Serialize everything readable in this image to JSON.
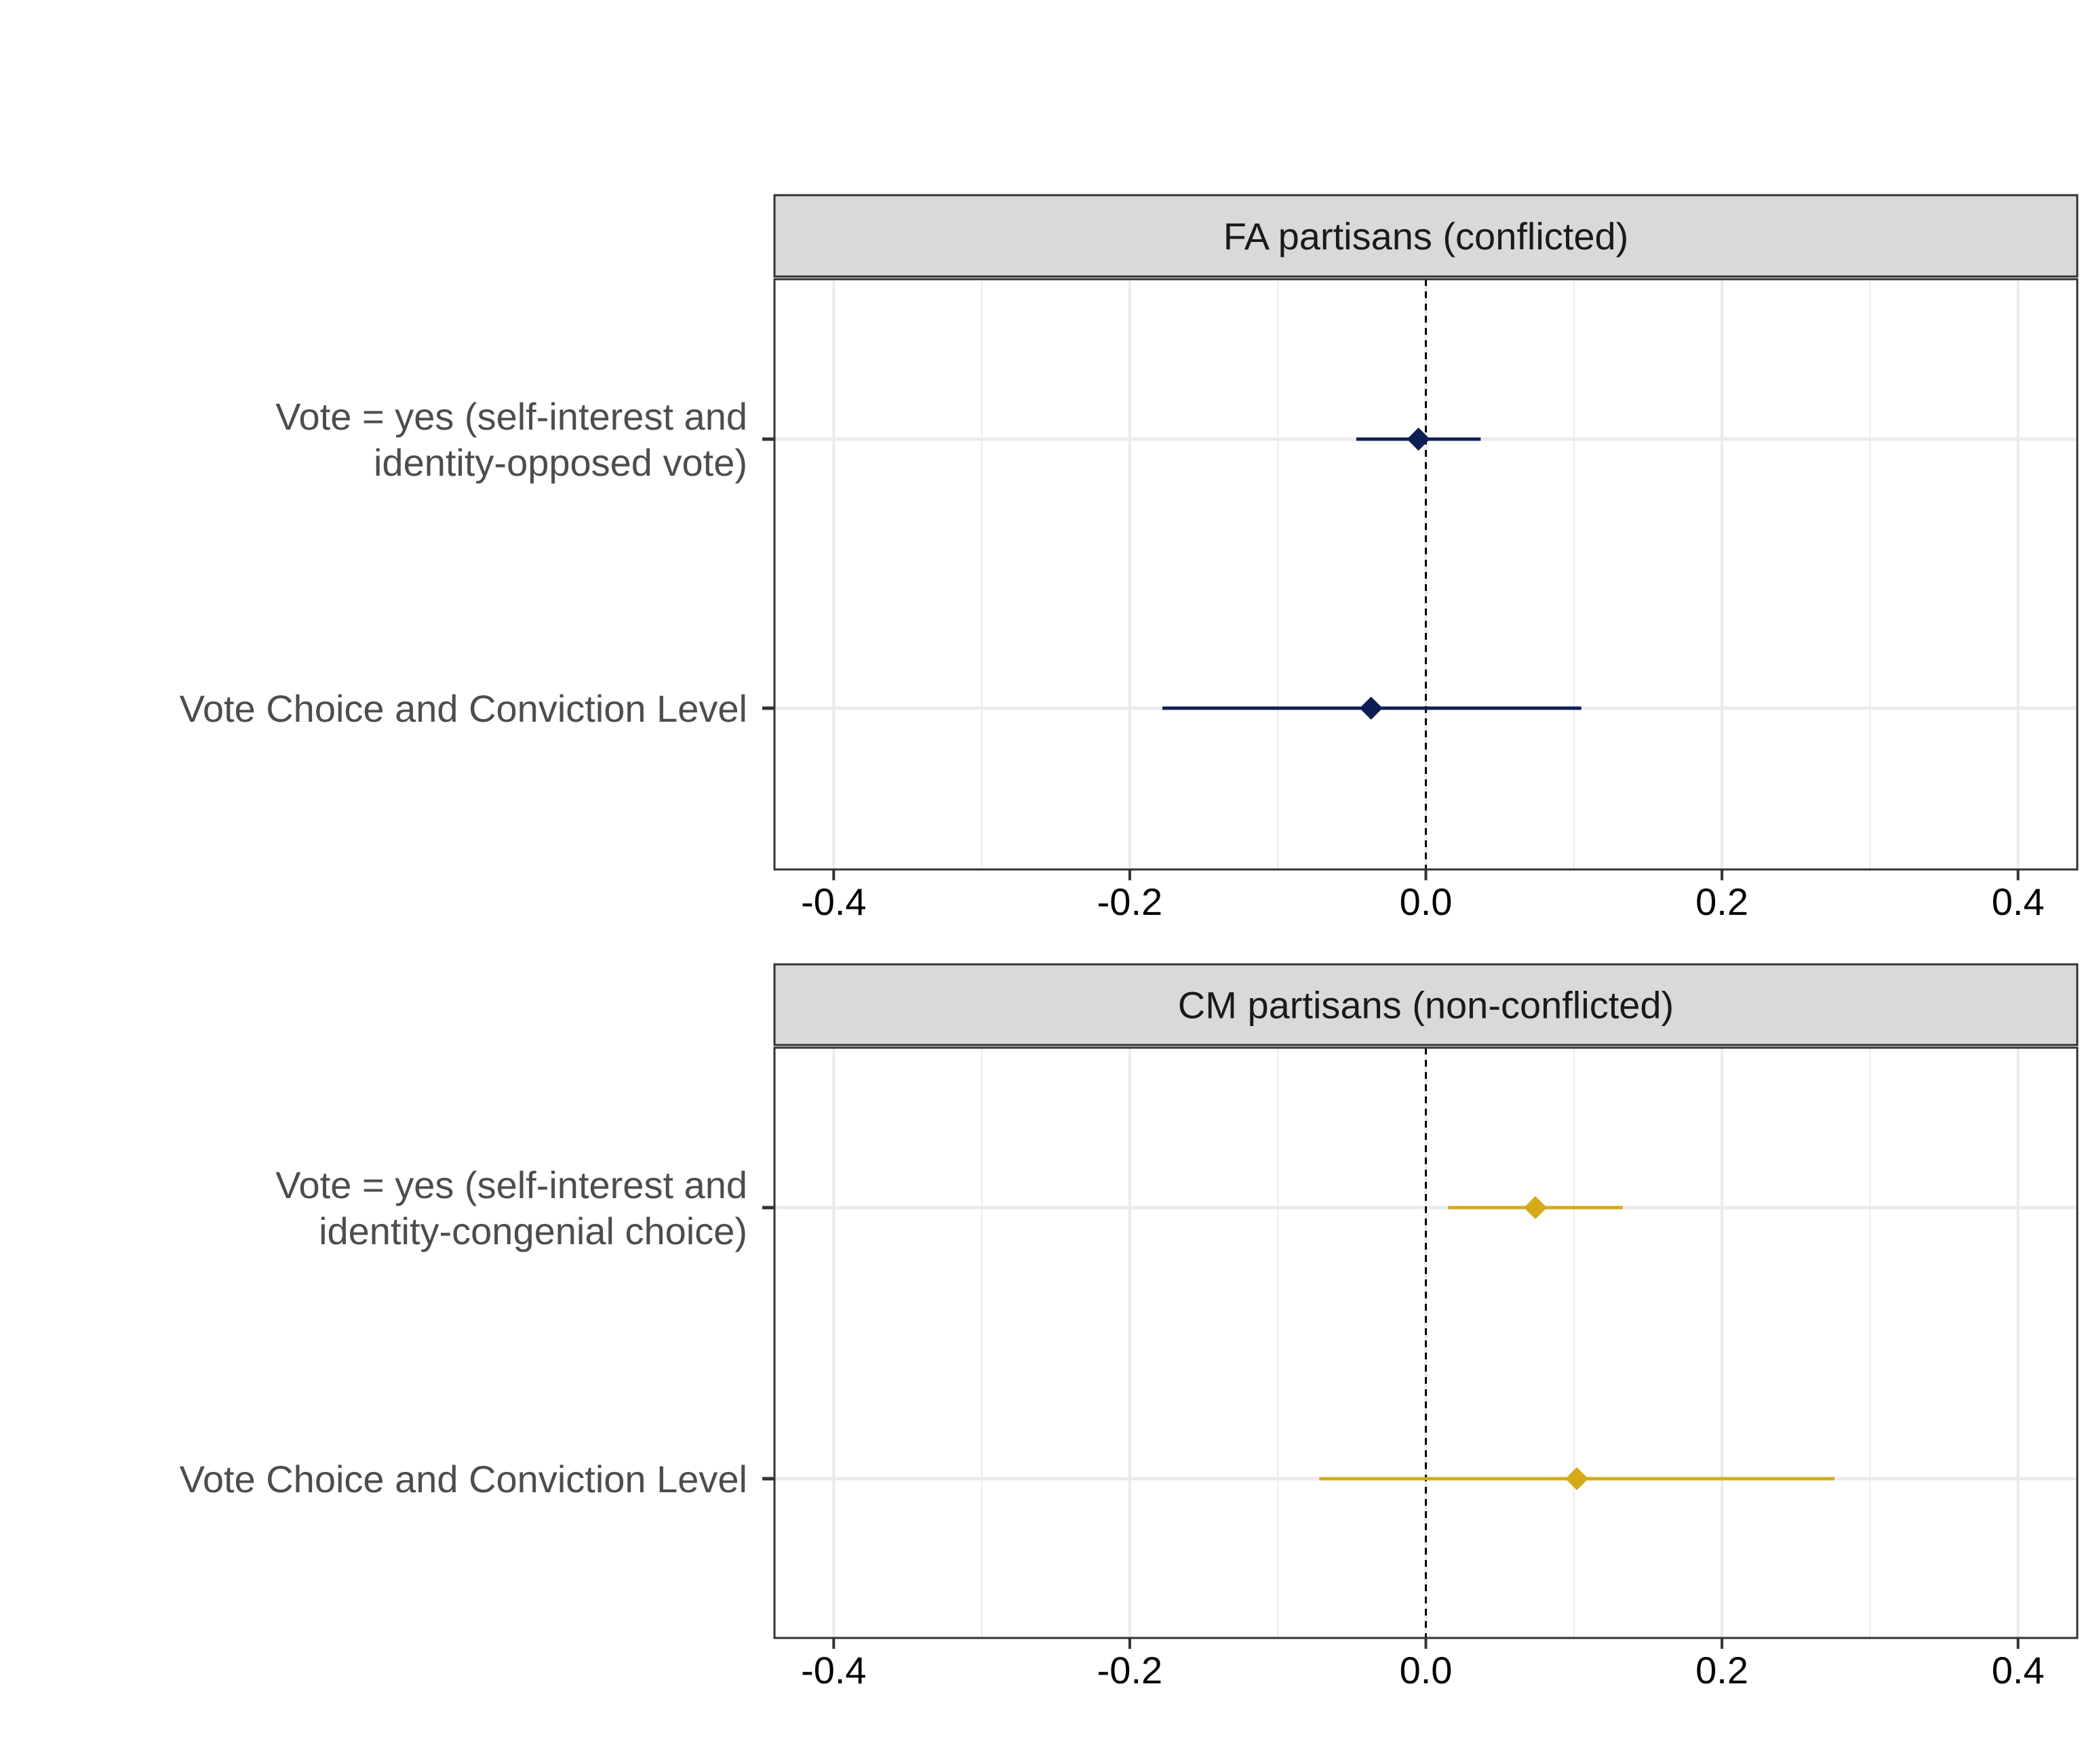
{
  "chart_data": [
    {
      "type": "scatter",
      "subtype": "coefficient-plot",
      "panel_title": "FA partisans (conflicted)",
      "x_ticks": [
        -0.4,
        -0.2,
        0.0,
        0.2,
        0.4
      ],
      "x_tick_labels": [
        "-0.4",
        "-0.2",
        "0.0",
        "0.2",
        "0.4"
      ],
      "xlim": [
        -0.44,
        0.44
      ],
      "reference_line": 0.0,
      "grid": true,
      "color": "#0d1f54",
      "rows": [
        {
          "label_lines": [
            "Vote = yes (self-interest and",
            "identity-opposed vote)"
          ],
          "estimate": -0.005,
          "ci": [
            -0.047,
            0.037
          ]
        },
        {
          "label_lines": [
            "Vote Choice and Conviction Level"
          ],
          "estimate": -0.037,
          "ci": [
            -0.178,
            0.105
          ]
        }
      ]
    },
    {
      "type": "scatter",
      "subtype": "coefficient-plot",
      "panel_title": "CM partisans (non-conflicted)",
      "x_ticks": [
        -0.4,
        -0.2,
        0.0,
        0.2,
        0.4
      ],
      "x_tick_labels": [
        "-0.4",
        "-0.2",
        "0.0",
        "0.2",
        "0.4"
      ],
      "xlim": [
        -0.44,
        0.44
      ],
      "reference_line": 0.0,
      "grid": true,
      "color": "#d4aa1a",
      "rows": [
        {
          "label_lines": [
            "Vote = yes (self-interest and",
            "identity-congenial choice)"
          ],
          "estimate": 0.074,
          "ci": [
            0.015,
            0.133
          ]
        },
        {
          "label_lines": [
            "Vote Choice and Conviction Level"
          ],
          "estimate": 0.102,
          "ci": [
            -0.072,
            0.276
          ]
        }
      ]
    }
  ]
}
